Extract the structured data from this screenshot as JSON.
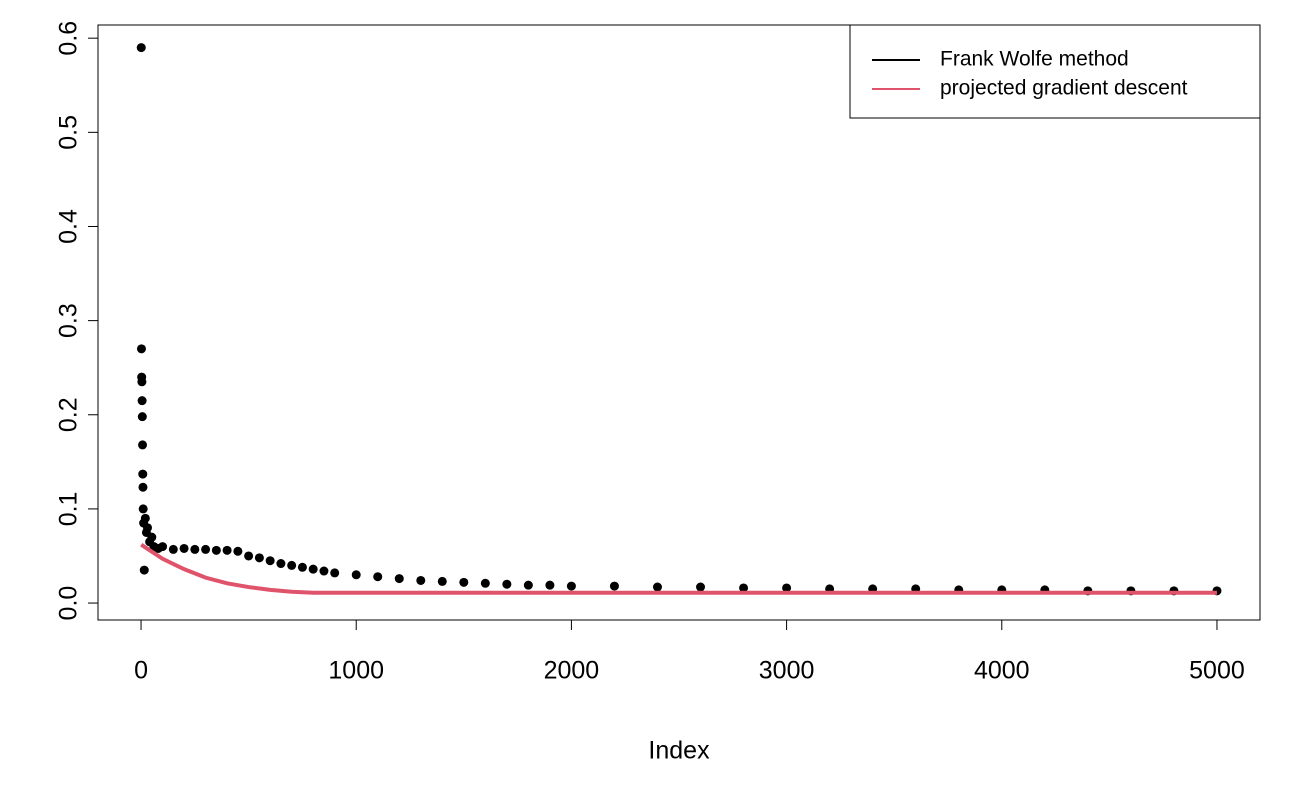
{
  "chart_data": {
    "type": "scatter",
    "x_label": "Index",
    "xlim": [
      -200,
      5200
    ],
    "ylim": [
      -0.018,
      0.614
    ],
    "xticks": [
      0,
      1000,
      2000,
      3000,
      4000,
      5000
    ],
    "yticks": [
      {
        "value": 0,
        "label": "0.0"
      },
      0.1,
      0.2,
      0.3,
      0.4,
      0.5,
      0.6
    ],
    "legend": "top-right",
    "series": [
      {
        "name": "Frank Wolfe method",
        "color": "#000000",
        "style": "points",
        "x": [
          1,
          2,
          3,
          4,
          5,
          6,
          7,
          8,
          9,
          10,
          12,
          15,
          20,
          25,
          30,
          40,
          50,
          60,
          80,
          100,
          150,
          200,
          250,
          300,
          350,
          400,
          450,
          500,
          550,
          600,
          650,
          700,
          750,
          800,
          850,
          900,
          1000,
          1100,
          1200,
          1300,
          1400,
          1500,
          1600,
          1700,
          1800,
          1900,
          2000,
          2200,
          2400,
          2600,
          2800,
          3000,
          3200,
          3400,
          3600,
          3800,
          4000,
          4200,
          4400,
          4600,
          4800,
          5000
        ],
        "values": [
          0.59,
          0.27,
          0.24,
          0.235,
          0.215,
          0.198,
          0.168,
          0.137,
          0.123,
          0.1,
          0.085,
          0.035,
          0.09,
          0.075,
          0.08,
          0.065,
          0.07,
          0.06,
          0.058,
          0.06,
          0.057,
          0.058,
          0.057,
          0.057,
          0.056,
          0.056,
          0.055,
          0.05,
          0.048,
          0.045,
          0.042,
          0.04,
          0.038,
          0.036,
          0.034,
          0.032,
          0.03,
          0.028,
          0.026,
          0.024,
          0.023,
          0.022,
          0.021,
          0.02,
          0.019,
          0.019,
          0.018,
          0.018,
          0.017,
          0.017,
          0.016,
          0.016,
          0.015,
          0.015,
          0.015,
          0.014,
          0.014,
          0.014,
          0.013,
          0.013,
          0.013,
          0.013
        ]
      },
      {
        "name": "projected gradient descent",
        "color": "#DF536B",
        "style": "line",
        "x": [
          1,
          100,
          200,
          300,
          400,
          500,
          600,
          700,
          800,
          1000,
          2000,
          3000,
          4000,
          5000
        ],
        "values": [
          0.062,
          0.047,
          0.036,
          0.027,
          0.021,
          0.017,
          0.014,
          0.012,
          0.011,
          0.011,
          0.011,
          0.011,
          0.011,
          0.011
        ]
      }
    ]
  }
}
